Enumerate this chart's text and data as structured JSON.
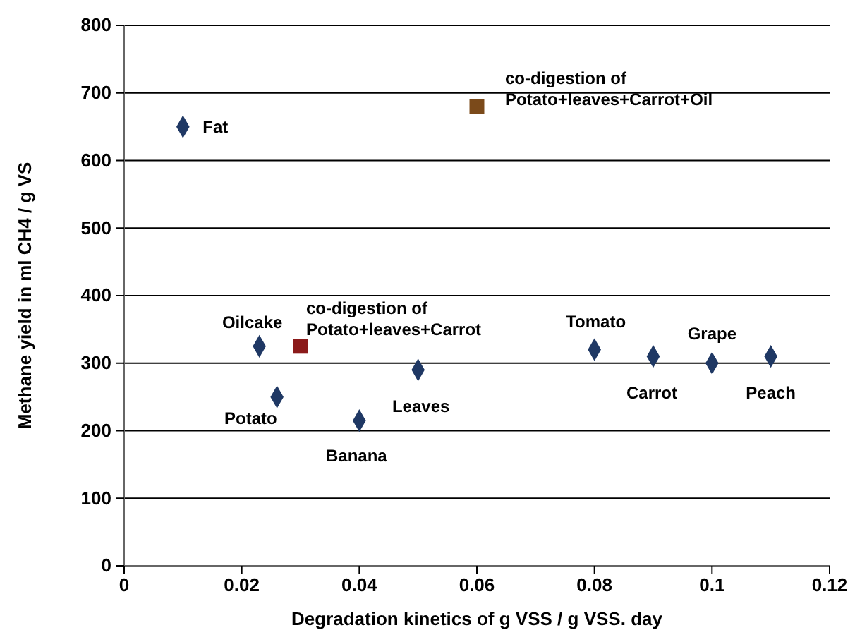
{
  "chart_data": {
    "type": "scatter",
    "xlabel": "Degradation kinetics of  g VSS / g VSS. day",
    "ylabel": "Methane yield in ml CH4 / g VS",
    "xlim": [
      0,
      0.12
    ],
    "xticks": [
      0,
      0.02,
      0.04,
      0.06,
      0.08,
      0.1,
      0.12
    ],
    "ylim": [
      0,
      800
    ],
    "yticks": [
      0,
      100,
      200,
      300,
      400,
      500,
      600,
      700,
      800
    ],
    "grid": "y",
    "series": [
      {
        "color": "#1f3864",
        "marker": "diamond",
        "x": [
          0.01,
          0.023,
          0.026,
          0.04,
          0.05,
          0.08,
          0.09,
          0.1,
          0.11
        ],
        "values": [
          650,
          325,
          250,
          215,
          290,
          320,
          310,
          300,
          310
        ]
      },
      {
        "color": "#8b1a1a",
        "marker": "square",
        "x": [
          0.03
        ],
        "values": [
          325
        ]
      },
      {
        "color": "#7b4a1a",
        "marker": "square",
        "x": [
          0.06
        ],
        "values": [
          680
        ]
      }
    ],
    "annotations": [
      {
        "text": "Fat",
        "x": 0.01,
        "y": 650
      },
      {
        "text": "Oilcake",
        "x": 0.023,
        "y": 325
      },
      {
        "text": "Potato",
        "x": 0.026,
        "y": 250
      },
      {
        "text": "Banana",
        "x": 0.04,
        "y": 215
      },
      {
        "text": "Leaves",
        "x": 0.05,
        "y": 290
      },
      {
        "text": "Tomato",
        "x": 0.08,
        "y": 320
      },
      {
        "text": "Carrot",
        "x": 0.09,
        "y": 310
      },
      {
        "text": "Grape",
        "x": 0.1,
        "y": 300
      },
      {
        "text": "Peach",
        "x": 0.11,
        "y": 310
      },
      {
        "text": "co-digestion of\nPotato+leaves+Carrot",
        "x": 0.03,
        "y": 325
      },
      {
        "text": "co-digestion of\nPotato+leaves+Carrot+Oil",
        "x": 0.06,
        "y": 680
      }
    ]
  }
}
